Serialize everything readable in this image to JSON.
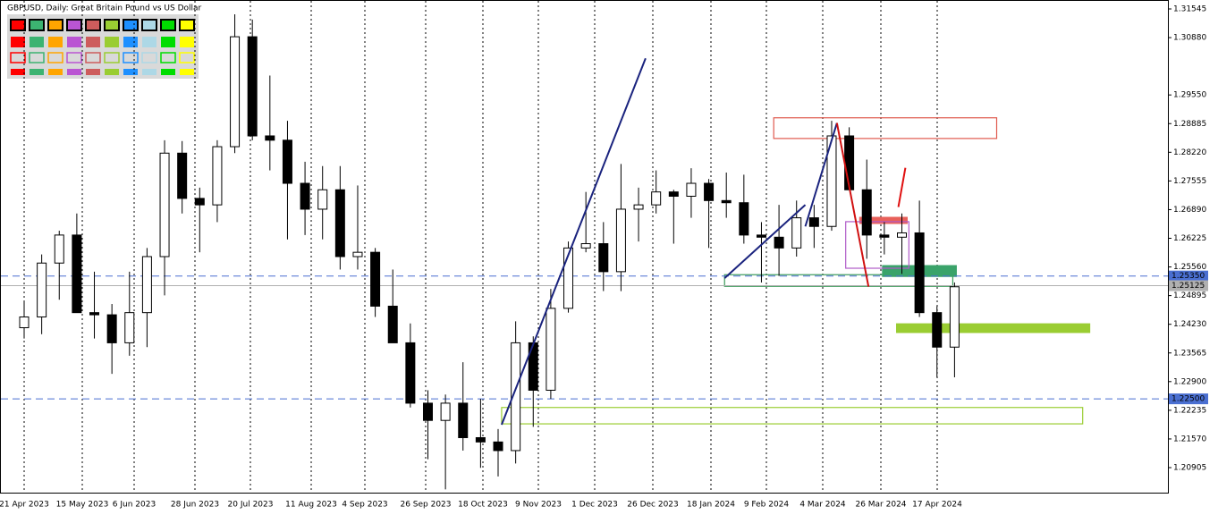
{
  "chart_data": {
    "type": "candlestick",
    "title": "GBPUSD, Daily:  Great Britain Pound vs US Dollar",
    "x_labels": [
      "21 Apr 2023",
      "15 May 2023",
      "6 Jun 2023",
      "28 Jun 2023",
      "20 Jul 2023",
      "11 Aug 2023",
      "4 Sep 2023",
      "26 Sep 2023",
      "18 Oct 2023",
      "9 Nov 2023",
      "1 Dec 2023",
      "26 Dec 2023",
      "18 Jan 2024",
      "9 Feb 2024",
      "4 Mar 2024",
      "26 Mar 2024",
      "17 Apr 2024"
    ],
    "open": [
      1.2415,
      1.244,
      1.2565,
      1.263,
      1.245,
      1.2445,
      1.238,
      1.245,
      1.258,
      1.282,
      1.2715,
      1.27,
      1.2835,
      1.309,
      1.286,
      1.285,
      1.275,
      1.269,
      1.2735,
      1.258,
      1.259,
      1.2465,
      1.238,
      1.224,
      1.22,
      1.224,
      1.216,
      1.215,
      1.213,
      1.238,
      1.227,
      1.246,
      1.26,
      1.261,
      1.2545,
      1.269,
      1.27,
      1.273,
      1.272,
      1.275,
      1.271,
      1.2705,
      1.263,
      1.2625,
      1.26,
      1.267,
      1.265,
      1.286,
      1.2735,
      1.263,
      1.2625,
      1.2635,
      1.245,
      1.237
    ],
    "high": [
      1.2475,
      1.2585,
      1.264,
      1.268,
      1.2545,
      1.247,
      1.2545,
      1.26,
      1.285,
      1.2848,
      1.274,
      1.285,
      1.3142,
      1.313,
      1.3,
      1.2895,
      1.28,
      1.279,
      1.279,
      1.2745,
      1.26,
      1.255,
      1.2425,
      1.227,
      1.226,
      1.2335,
      1.225,
      1.218,
      1.243,
      1.2395,
      1.2505,
      1.2615,
      1.273,
      1.266,
      1.2795,
      1.274,
      1.278,
      1.2735,
      1.2785,
      1.276,
      1.2775,
      1.277,
      1.266,
      1.27,
      1.271,
      1.27,
      1.2895,
      1.288,
      1.2805,
      1.266,
      1.268,
      1.271,
      1.2465,
      1.252
    ],
    "low": [
      1.239,
      1.24,
      1.248,
      1.245,
      1.239,
      1.2308,
      1.235,
      1.237,
      1.249,
      1.268,
      1.259,
      1.266,
      1.282,
      1.285,
      1.278,
      1.262,
      1.263,
      1.262,
      1.255,
      1.255,
      1.244,
      1.238,
      1.223,
      1.211,
      1.204,
      1.213,
      1.209,
      1.207,
      1.21,
      1.2185,
      1.225,
      1.245,
      1.259,
      1.25,
      1.25,
      1.2615,
      1.268,
      1.261,
      1.267,
      1.26,
      1.267,
      1.261,
      1.252,
      1.2535,
      1.258,
      1.26,
      1.264,
      1.2735,
      1.2575,
      1.2585,
      1.254,
      1.244,
      1.23,
      1.23
    ],
    "close": [
      1.244,
      1.2565,
      1.263,
      1.245,
      1.2445,
      1.238,
      1.245,
      1.258,
      1.282,
      1.2715,
      1.27,
      1.2835,
      1.309,
      1.286,
      1.285,
      1.275,
      1.269,
      1.2735,
      1.258,
      1.259,
      1.2465,
      1.238,
      1.224,
      1.22,
      1.224,
      1.216,
      1.215,
      1.213,
      1.238,
      1.227,
      1.246,
      1.26,
      1.261,
      1.2545,
      1.269,
      1.27,
      1.273,
      1.272,
      1.275,
      1.271,
      1.2705,
      1.263,
      1.2625,
      1.26,
      1.267,
      1.265,
      1.286,
      1.2735,
      1.263,
      1.2625,
      1.2635,
      1.245,
      1.237,
      1.251
    ],
    "ylim": [
      1.20905,
      1.31545
    ],
    "yticks": [
      1.31545,
      {
        "value": 1.3088,
        "label": "1.30880"
      },
      {
        "value": 1.2955,
        "label": "1.29550"
      },
      1.28885,
      {
        "value": 1.2822,
        "label": "1.28220"
      },
      1.27555,
      {
        "value": 1.2689,
        "label": "1.26890"
      },
      1.26225,
      {
        "value": 1.2556,
        "label": "1.25560"
      },
      1.24895,
      {
        "value": 1.2423,
        "label": "1.24230"
      },
      1.23565,
      {
        "value": 1.229,
        "label": "1.22900"
      },
      1.22235,
      {
        "value": 1.2157,
        "label": "1.21570"
      },
      1.20905
    ],
    "hlines": [
      {
        "value": 1.2535,
        "label": "1.25350",
        "color": "#4a6fd1",
        "style": "dashed"
      },
      {
        "value": 1.225,
        "label": "1.22500",
        "color": "#4a6fd1",
        "style": "dashed"
      },
      {
        "value": 1.25125,
        "label": "1.25125",
        "color": "#b0b0b0",
        "style": "solid"
      }
    ],
    "zones": [
      {
        "from": 42.7,
        "to": 55.4,
        "top": 1.2902,
        "bottom": 1.2854,
        "color": "#e05a4e",
        "filled": false
      },
      {
        "from": 39.9,
        "to": 52.9,
        "top": 1.2538,
        "bottom": 1.2511,
        "color": "#3a9a5a",
        "filled": false
      },
      {
        "from": 48.9,
        "to": 53.1,
        "top": 1.2559,
        "bottom": 1.2534,
        "color": "#3aa36a",
        "filled": true
      },
      {
        "from": 47.6,
        "to": 50.3,
        "top": 1.2671,
        "bottom": 1.2657,
        "color": "#e8605a",
        "filled": true
      },
      {
        "from": 46.8,
        "to": 50.4,
        "top": 1.2661,
        "bottom": 1.2553,
        "color": "#b05bc8",
        "filled": false
      },
      {
        "from": 49.7,
        "to": 60.7,
        "top": 1.2424,
        "bottom": 1.2404,
        "color": "#9acd32",
        "filled": true
      },
      {
        "from": 27.2,
        "to": 60.3,
        "top": 1.223,
        "bottom": 1.2192,
        "color": "#9acd32",
        "filled": false
      }
    ],
    "lines": [
      {
        "x": [
          27.2,
          35.4
        ],
        "y": [
          1.219,
          1.304
        ],
        "color": "#1a237e"
      },
      {
        "x": [
          39.9,
          44.5
        ],
        "y": [
          1.253,
          1.27
        ],
        "color": "#1a237e"
      },
      {
        "x": [
          44.5,
          46.3
        ],
        "y": [
          1.265,
          1.289
        ],
        "color": "#1a237e"
      },
      {
        "x": [
          46.3,
          48.1
        ],
        "y": [
          1.289,
          1.251
        ],
        "color": "#d01010"
      },
      {
        "x": [
          49.8,
          50.2
        ],
        "y": [
          1.2695,
          1.2786
        ],
        "color": "#e01010"
      }
    ]
  }
}
